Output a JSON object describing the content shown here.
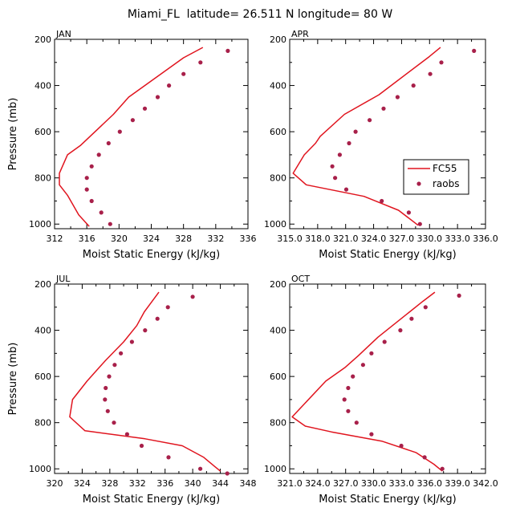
{
  "figure_title": "Miami_FL  latitude= 26.511 N longitude= 80 W",
  "colors": {
    "model": "#e0141e",
    "obs": "#a8204a",
    "axis": "#000000"
  },
  "legend": {
    "placement": "right-middle of APR panel",
    "model_label": "FC55",
    "obs_label": "raobs"
  },
  "chart_data": [
    {
      "type": "line",
      "title": "JAN",
      "xlabel": "Moist Static Energy (kJ/kg)",
      "ylabel": "Pressure (mb)",
      "xlim": [
        312,
        336
      ],
      "ylim": [
        200,
        1020
      ],
      "y_inverted": true,
      "x_ticks": [
        312,
        316,
        320,
        324,
        328,
        332,
        336
      ],
      "x_tick_labels": [
        "312",
        "316",
        "320",
        "324",
        "328",
        "332",
        "336"
      ],
      "y_ticks": [
        200,
        400,
        600,
        800,
        1000
      ],
      "y_tick_labels": [
        "200",
        "400",
        "600",
        "800",
        "1000"
      ],
      "series": [
        {
          "name": "FC55",
          "kind": "line",
          "points": [
            [
              330.4,
              235
            ],
            [
              328.0,
              280
            ],
            [
              321.2,
              450
            ],
            [
              319.3,
              525
            ],
            [
              315.2,
              660
            ],
            [
              313.6,
              700
            ],
            [
              312.6,
              780
            ],
            [
              312.6,
              830
            ],
            [
              313.6,
              875
            ],
            [
              315.0,
              960
            ],
            [
              316.3,
              1010
            ]
          ]
        },
        {
          "name": "raobs",
          "kind": "markers",
          "points": [
            [
              333.5,
              250
            ],
            [
              330.1,
              300
            ],
            [
              328.0,
              350
            ],
            [
              326.2,
              400
            ],
            [
              324.8,
              450
            ],
            [
              323.2,
              500
            ],
            [
              321.7,
              550
            ],
            [
              320.1,
              600
            ],
            [
              318.7,
              650
            ],
            [
              317.5,
              700
            ],
            [
              316.6,
              750
            ],
            [
              316.0,
              800
            ],
            [
              316.0,
              850
            ],
            [
              316.6,
              900
            ],
            [
              317.8,
              950
            ],
            [
              318.9,
              1000
            ]
          ]
        }
      ]
    },
    {
      "type": "line",
      "title": "APR",
      "xlabel": "Moist Static Energy (kJ/kg)",
      "ylabel": "",
      "xlim": [
        315.03,
        336.03
      ],
      "ylim": [
        200,
        1020
      ],
      "y_inverted": true,
      "x_ticks": [
        315.03,
        318.03,
        321.03,
        324.03,
        327.03,
        330.03,
        333.03,
        336.03
      ],
      "x_tick_labels": [
        "315.0",
        "318.0",
        "321.0",
        "324.0",
        "327.0",
        "330.0",
        "333.0",
        "336.0"
      ],
      "y_ticks": [
        200,
        400,
        600,
        800,
        1000
      ],
      "y_tick_labels": [
        "200",
        "400",
        "600",
        "800",
        "1000"
      ],
      "series": [
        {
          "name": "FC55",
          "kind": "line",
          "points": [
            [
              331.2,
              235
            ],
            [
              330.0,
              275
            ],
            [
              324.6,
              440
            ],
            [
              320.9,
              525
            ],
            [
              318.3,
              620
            ],
            [
              317.8,
              650
            ],
            [
              316.6,
              700
            ],
            [
              315.4,
              780
            ],
            [
              316.8,
              830
            ],
            [
              323.0,
              880
            ],
            [
              326.7,
              940
            ],
            [
              328.8,
              1005
            ]
          ]
        },
        {
          "name": "raobs",
          "kind": "markers",
          "points": [
            [
              334.8,
              250
            ],
            [
              331.3,
              300
            ],
            [
              330.1,
              350
            ],
            [
              328.3,
              400
            ],
            [
              326.6,
              450
            ],
            [
              325.1,
              500
            ],
            [
              323.6,
              550
            ],
            [
              322.1,
              600
            ],
            [
              321.4,
              650
            ],
            [
              320.4,
              700
            ],
            [
              319.6,
              750
            ],
            [
              319.9,
              800
            ],
            [
              321.1,
              850
            ],
            [
              324.9,
              900
            ],
            [
              327.8,
              950
            ],
            [
              329.0,
              1000
            ]
          ]
        }
      ]
    },
    {
      "type": "line",
      "title": "JUL",
      "xlabel": "Moist Static Energy (kJ/kg)",
      "ylabel": "Pressure (mb)",
      "xlim": [
        320,
        348
      ],
      "ylim": [
        200,
        1020
      ],
      "y_inverted": true,
      "x_ticks": [
        320,
        324,
        328,
        332,
        336,
        340,
        344,
        348
      ],
      "x_tick_labels": [
        "320",
        "324",
        "328",
        "332",
        "336",
        "340",
        "344",
        "348"
      ],
      "y_ticks": [
        200,
        400,
        600,
        800,
        1000
      ],
      "y_tick_labels": [
        "200",
        "400",
        "600",
        "800",
        "1000"
      ],
      "series": [
        {
          "name": "FC55",
          "kind": "line",
          "points": [
            [
              335.1,
              235
            ],
            [
              333.0,
              320
            ],
            [
              331.9,
              380
            ],
            [
              330.0,
              450
            ],
            [
              327.4,
              530
            ],
            [
              326.5,
              560
            ],
            [
              324.7,
              620
            ],
            [
              322.6,
              700
            ],
            [
              322.2,
              775
            ],
            [
              324.4,
              835
            ],
            [
              333.1,
              870
            ],
            [
              338.5,
              900
            ],
            [
              341.6,
              950
            ],
            [
              343.2,
              990
            ],
            [
              344.0,
              1010
            ]
          ]
        },
        {
          "name": "raobs",
          "kind": "markers",
          "points": [
            [
              340.0,
              255
            ],
            [
              336.4,
              300
            ],
            [
              334.9,
              350
            ],
            [
              333.1,
              400
            ],
            [
              331.2,
              450
            ],
            [
              329.6,
              500
            ],
            [
              328.7,
              550
            ],
            [
              327.9,
              600
            ],
            [
              327.4,
              650
            ],
            [
              327.3,
              700
            ],
            [
              327.7,
              750
            ],
            [
              328.6,
              800
            ],
            [
              330.5,
              850
            ],
            [
              332.6,
              900
            ],
            [
              336.5,
              950
            ],
            [
              341.1,
              1000
            ],
            [
              345.0,
              1020
            ]
          ]
        }
      ]
    },
    {
      "type": "line",
      "title": "OCT",
      "xlabel": "Moist Static Energy (kJ/kg)",
      "ylabel": "",
      "xlim": [
        321.03,
        342.03
      ],
      "ylim": [
        200,
        1020
      ],
      "y_inverted": true,
      "x_ticks": [
        321.03,
        324.03,
        327.03,
        330.03,
        333.03,
        336.03,
        339.03,
        342.03
      ],
      "x_tick_labels": [
        "321.0",
        "324.0",
        "327.0",
        "330.0",
        "333.0",
        "336.0",
        "339.0",
        "342.0"
      ],
      "y_ticks": [
        200,
        400,
        600,
        800,
        1000
      ],
      "y_tick_labels": [
        "200",
        "400",
        "600",
        "800",
        "1000"
      ],
      "series": [
        {
          "name": "FC55",
          "kind": "line",
          "points": [
            [
              336.6,
              235
            ],
            [
              335.3,
              275
            ],
            [
              330.5,
              430
            ],
            [
              328.4,
              510
            ],
            [
              327.0,
              560
            ],
            [
              324.9,
              620
            ],
            [
              321.3,
              775
            ],
            [
              322.7,
              815
            ],
            [
              325.5,
              840
            ],
            [
              330.9,
              880
            ],
            [
              334.6,
              930
            ],
            [
              336.5,
              980
            ],
            [
              337.4,
              1010
            ]
          ]
        },
        {
          "name": "raobs",
          "kind": "markers",
          "points": [
            [
              339.2,
              250
            ],
            [
              335.6,
              300
            ],
            [
              334.1,
              350
            ],
            [
              332.9,
              400
            ],
            [
              331.2,
              450
            ],
            [
              329.8,
              500
            ],
            [
              328.9,
              550
            ],
            [
              327.8,
              600
            ],
            [
              327.3,
              650
            ],
            [
              326.9,
              700
            ],
            [
              327.3,
              750
            ],
            [
              328.2,
              800
            ],
            [
              329.8,
              850
            ],
            [
              333.0,
              900
            ],
            [
              335.5,
              950
            ],
            [
              337.4,
              1000
            ]
          ]
        }
      ]
    }
  ]
}
